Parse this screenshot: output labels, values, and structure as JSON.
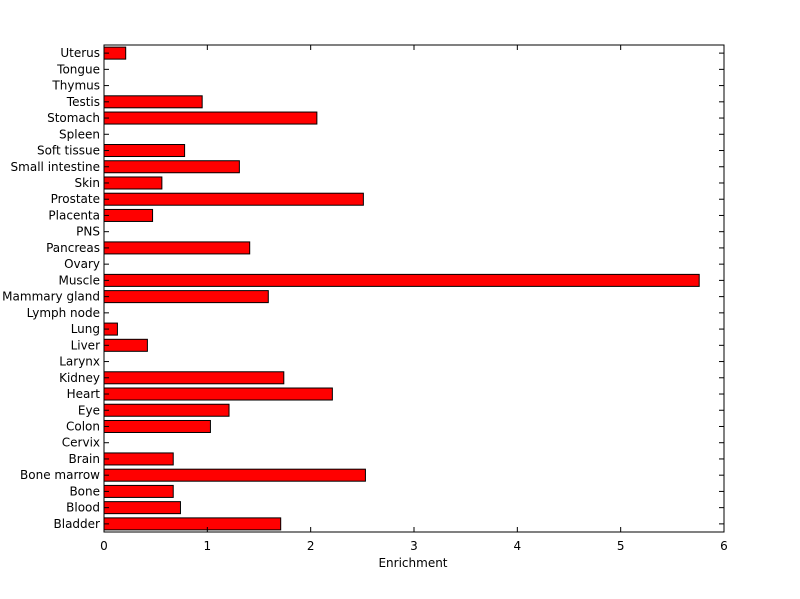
{
  "chart_data": {
    "type": "bar",
    "orientation": "horizontal",
    "title": "",
    "xlabel": "Enrichment",
    "ylabel": "",
    "xlim": [
      0,
      6
    ],
    "xticks": [
      "0",
      "1",
      "2",
      "3",
      "4",
      "5",
      "6"
    ],
    "grid": false,
    "legend": "none",
    "bar_color": "#ff0000",
    "bar_edge_color": "#000000",
    "categories": [
      "Bladder",
      "Blood",
      "Bone",
      "Bone marrow",
      "Brain",
      "Cervix",
      "Colon",
      "Eye",
      "Heart",
      "Kidney",
      "Larynx",
      "Liver",
      "Lung",
      "Lymph node",
      "Mammary gland",
      "Muscle",
      "Ovary",
      "Pancreas",
      "PNS",
      "Placenta",
      "Prostate",
      "Skin",
      "Small intestine",
      "Soft tissue",
      "Spleen",
      "Stomach",
      "Testis",
      "Thymus",
      "Tongue",
      "Uterus"
    ],
    "values": [
      1.71,
      0.74,
      0.67,
      2.53,
      0.67,
      0,
      1.03,
      1.21,
      2.21,
      1.74,
      0,
      0.42,
      0.13,
      0,
      1.59,
      5.76,
      0,
      1.41,
      0,
      0.47,
      2.51,
      0.56,
      1.31,
      0.78,
      0,
      2.06,
      0.95,
      0,
      0,
      0.21
    ]
  }
}
